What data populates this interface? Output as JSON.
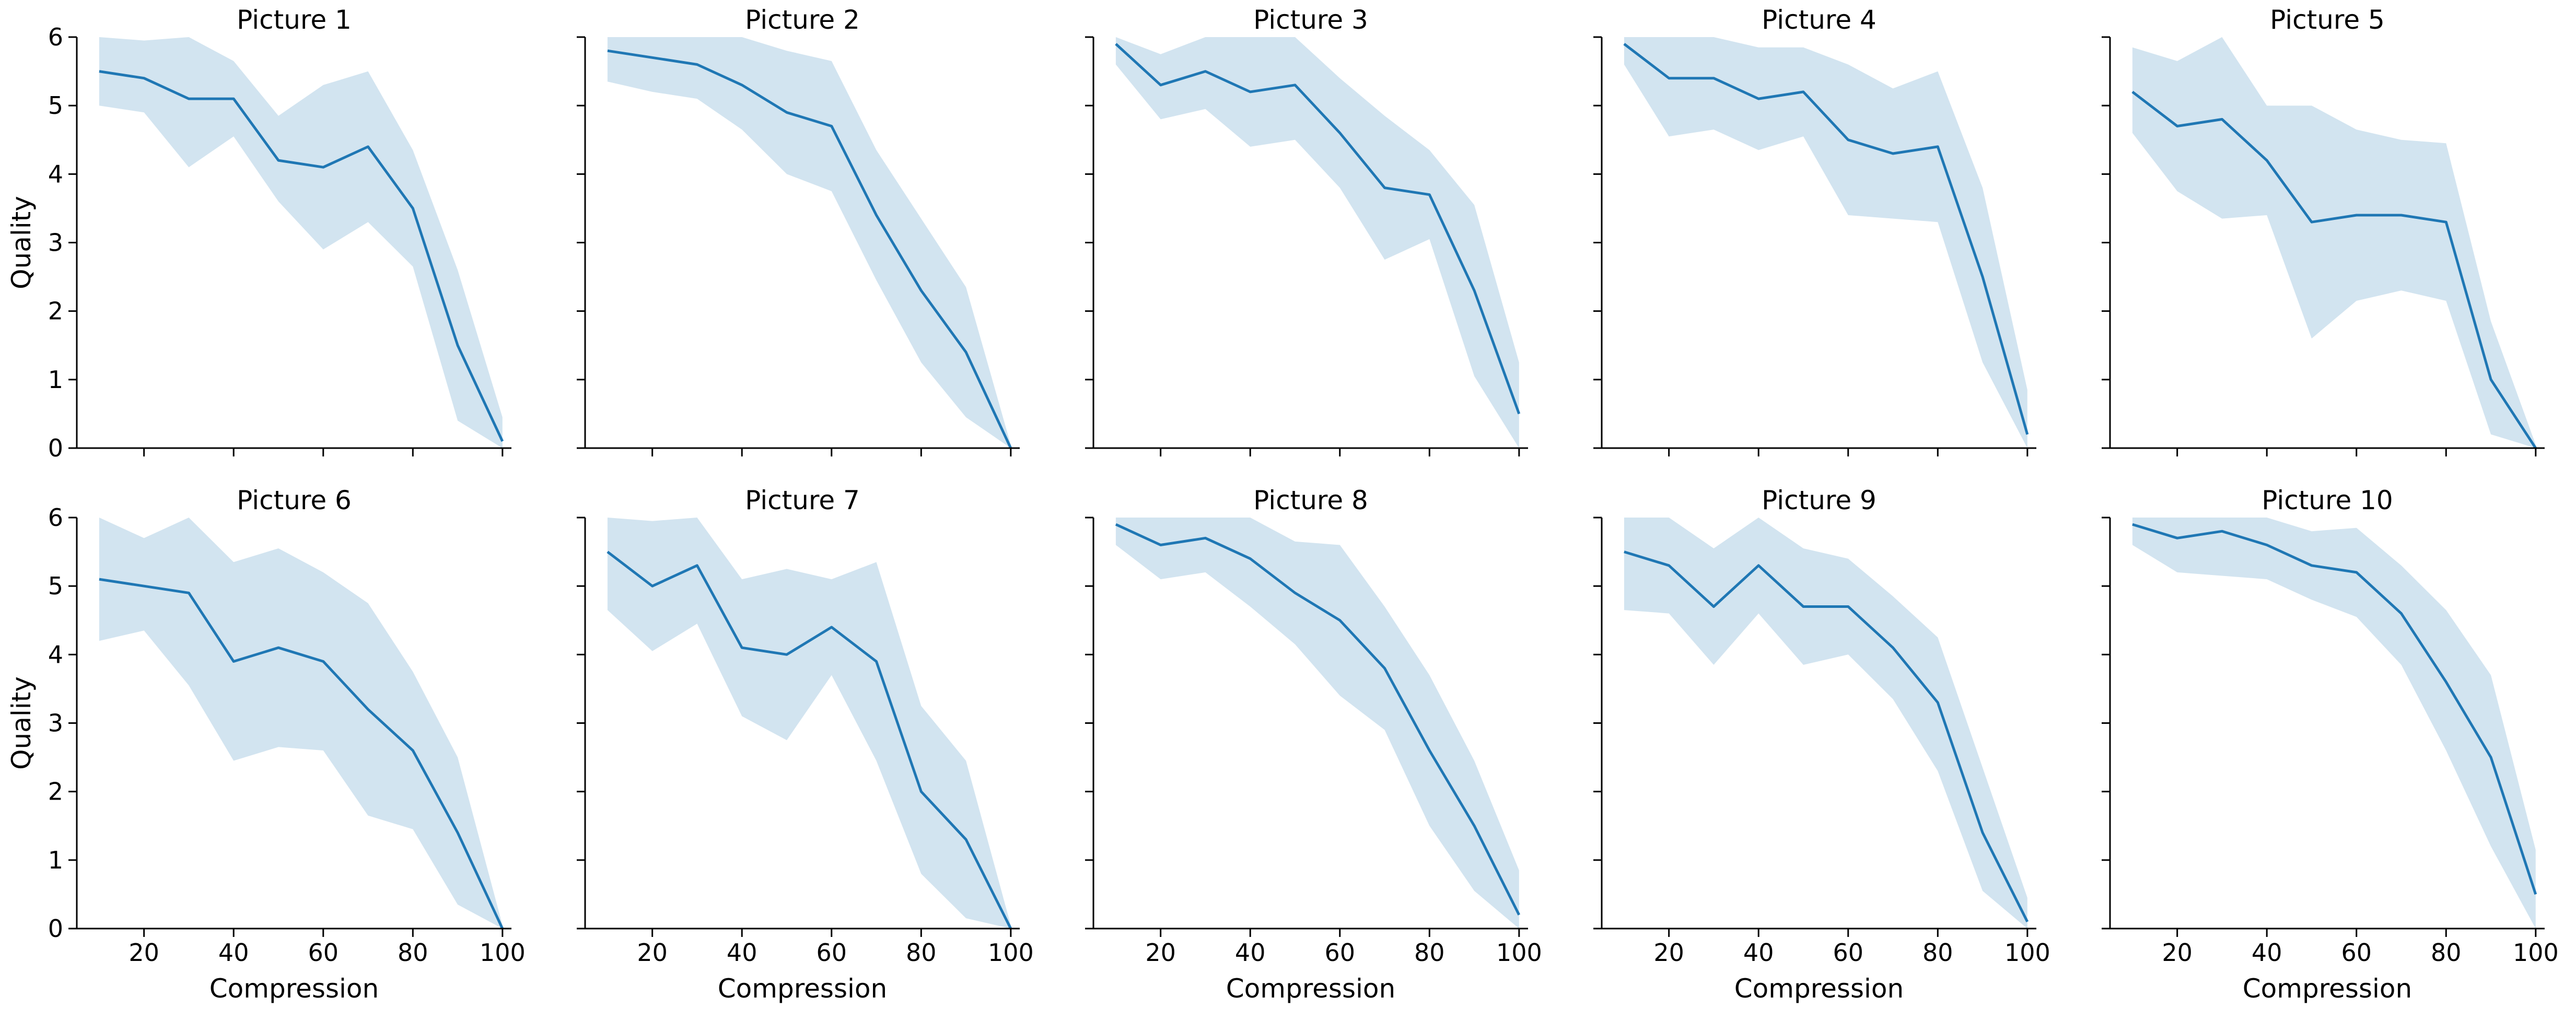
{
  "colors": {
    "line": "#1f77b4",
    "band": "#1f77b4",
    "band_opacity": 0.2
  },
  "chart_data": {
    "type": "line",
    "layout": "grid 2x5, shared axes",
    "xlabel": "Compression",
    "ylabel": "Quality",
    "xlim": [
      5,
      102
    ],
    "ylim": [
      0,
      6
    ],
    "xticks": [
      20,
      40,
      60,
      80,
      100
    ],
    "yticks": [
      0,
      1,
      2,
      3,
      4,
      5,
      6
    ],
    "x": [
      10,
      20,
      30,
      40,
      50,
      60,
      70,
      80,
      90,
      100
    ],
    "panels": [
      {
        "title": "Picture 1",
        "mean": [
          5.5,
          5.4,
          5.1,
          5.1,
          4.2,
          4.1,
          4.4,
          3.5,
          1.5,
          0.1
        ],
        "lower": [
          5.0,
          4.9,
          4.1,
          4.55,
          3.6,
          2.9,
          3.3,
          2.65,
          0.4,
          0.0
        ],
        "upper": [
          6.0,
          5.95,
          6.0,
          5.65,
          4.85,
          5.3,
          5.5,
          4.35,
          2.6,
          0.45
        ]
      },
      {
        "title": "Picture 2",
        "mean": [
          5.8,
          5.7,
          5.6,
          5.3,
          4.9,
          4.7,
          3.4,
          2.3,
          1.4,
          0.0
        ],
        "lower": [
          5.35,
          5.2,
          5.1,
          4.65,
          4.0,
          3.75,
          2.45,
          1.25,
          0.45,
          0.0
        ],
        "upper": [
          6.0,
          6.0,
          6.0,
          6.0,
          5.8,
          5.65,
          4.35,
          3.35,
          2.35,
          0.05
        ]
      },
      {
        "title": "Picture 3",
        "mean": [
          5.9,
          5.3,
          5.5,
          5.2,
          5.3,
          4.6,
          3.8,
          3.7,
          2.3,
          0.5
        ],
        "lower": [
          5.6,
          4.8,
          4.95,
          4.4,
          4.5,
          3.8,
          2.75,
          3.05,
          1.05,
          0.0
        ],
        "upper": [
          6.0,
          5.75,
          6.0,
          6.0,
          6.0,
          5.4,
          4.85,
          4.35,
          3.55,
          1.25
        ]
      },
      {
        "title": "Picture 4",
        "mean": [
          5.9,
          5.4,
          5.4,
          5.1,
          5.2,
          4.5,
          4.3,
          4.4,
          2.5,
          0.2
        ],
        "lower": [
          5.6,
          4.55,
          4.65,
          4.35,
          4.55,
          3.4,
          3.35,
          3.3,
          1.25,
          0.0
        ],
        "upper": [
          6.0,
          6.0,
          6.0,
          5.85,
          5.85,
          5.6,
          5.25,
          5.5,
          3.8,
          0.85
        ]
      },
      {
        "title": "Picture 5",
        "mean": [
          5.2,
          4.7,
          4.8,
          4.2,
          3.3,
          3.4,
          3.4,
          3.3,
          1.0,
          0.0
        ],
        "lower": [
          4.6,
          3.75,
          3.35,
          3.4,
          1.6,
          2.15,
          2.3,
          2.15,
          0.2,
          0.0
        ],
        "upper": [
          5.85,
          5.65,
          6.0,
          5.0,
          5.0,
          4.65,
          4.5,
          4.45,
          1.85,
          0.05
        ]
      },
      {
        "title": "Picture 6",
        "mean": [
          5.1,
          5.0,
          4.9,
          3.9,
          4.1,
          3.9,
          3.2,
          2.6,
          1.4,
          0.0
        ],
        "lower": [
          4.2,
          4.35,
          3.55,
          2.45,
          2.65,
          2.6,
          1.65,
          1.45,
          0.35,
          0.0
        ],
        "upper": [
          6.0,
          5.7,
          6.0,
          5.35,
          5.55,
          5.2,
          4.75,
          3.75,
          2.5,
          0.05
        ]
      },
      {
        "title": "Picture 7",
        "mean": [
          5.5,
          5.0,
          5.3,
          4.1,
          4.0,
          4.4,
          3.9,
          2.0,
          1.3,
          0.0
        ],
        "lower": [
          4.65,
          4.05,
          4.45,
          3.1,
          2.75,
          3.7,
          2.45,
          0.8,
          0.15,
          0.0
        ],
        "upper": [
          6.0,
          5.95,
          6.0,
          5.1,
          5.25,
          5.1,
          5.35,
          3.25,
          2.45,
          0.05
        ]
      },
      {
        "title": "Picture 8",
        "mean": [
          5.9,
          5.6,
          5.7,
          5.4,
          4.9,
          4.5,
          3.8,
          2.6,
          1.5,
          0.2
        ],
        "lower": [
          5.6,
          5.1,
          5.2,
          4.7,
          4.15,
          3.4,
          2.9,
          1.5,
          0.55,
          0.0
        ],
        "upper": [
          6.0,
          6.0,
          6.0,
          6.0,
          5.65,
          5.6,
          4.7,
          3.7,
          2.45,
          0.85
        ]
      },
      {
        "title": "Picture 9",
        "mean": [
          5.5,
          5.3,
          4.7,
          5.3,
          4.7,
          4.7,
          4.1,
          3.3,
          1.4,
          0.1
        ],
        "lower": [
          4.65,
          4.6,
          3.85,
          4.6,
          3.85,
          4.0,
          3.35,
          2.3,
          0.55,
          0.0
        ],
        "upper": [
          6.0,
          6.0,
          5.55,
          6.0,
          5.55,
          5.4,
          4.85,
          4.25,
          2.35,
          0.45
        ]
      },
      {
        "title": "Picture 10",
        "mean": [
          5.9,
          5.7,
          5.8,
          5.6,
          5.3,
          5.2,
          4.6,
          3.6,
          2.5,
          0.5
        ],
        "lower": [
          5.6,
          5.2,
          5.15,
          5.1,
          4.8,
          4.55,
          3.85,
          2.6,
          1.2,
          0.0
        ],
        "upper": [
          6.0,
          6.0,
          6.0,
          6.0,
          5.8,
          5.85,
          5.3,
          4.65,
          3.7,
          1.15
        ]
      }
    ]
  }
}
